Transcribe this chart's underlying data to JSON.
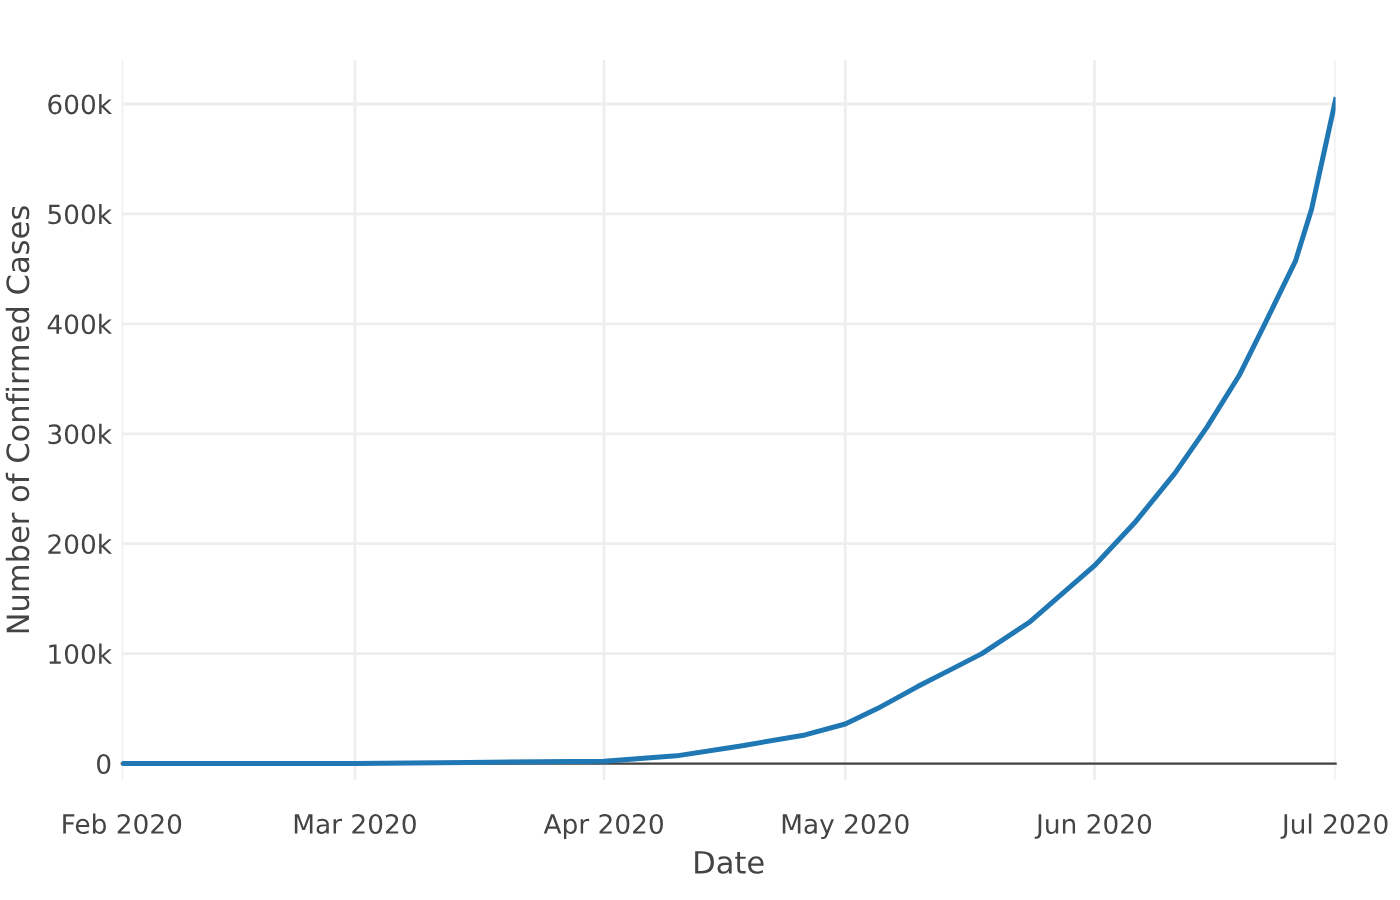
{
  "chart_data": {
    "type": "line",
    "xlabel": "Date",
    "ylabel": "Number of Confirmed Cases",
    "x": [
      "2020-02-01",
      "2020-03-01",
      "2020-03-15",
      "2020-04-01",
      "2020-04-10",
      "2020-04-18",
      "2020-04-26",
      "2020-05-01",
      "2020-05-05",
      "2020-05-10",
      "2020-05-14",
      "2020-05-18",
      "2020-05-24",
      "2020-06-01",
      "2020-06-06",
      "2020-06-11",
      "2020-06-15",
      "2020-06-19",
      "2020-06-22",
      "2020-06-26",
      "2020-06-28",
      "2020-07-01"
    ],
    "series": [
      {
        "color": "#1f77b4",
        "values": [
          0,
          0,
          1000,
          2000,
          7000,
          16000,
          26000,
          36000,
          50000,
          70000,
          85000,
          100000,
          129000,
          180000,
          219000,
          264000,
          306000,
          353000,
          397000,
          457000,
          504000,
          604000
        ]
      }
    ],
    "xlim": [
      "2020-02-01",
      "2020-07-01"
    ],
    "xticks": [
      {
        "value": "2020-02-01",
        "label": "Feb 2020"
      },
      {
        "value": "2020-03-01",
        "label": "Mar 2020"
      },
      {
        "value": "2020-04-01",
        "label": "Apr 2020"
      },
      {
        "value": "2020-05-01",
        "label": "May 2020"
      },
      {
        "value": "2020-06-01",
        "label": "Jun 2020"
      },
      {
        "value": "2020-07-01",
        "label": "Jul 2020"
      }
    ],
    "ylim": [
      -15000,
      640000
    ],
    "yticks": [
      0,
      {
        "value": 100000,
        "label": "100k"
      },
      {
        "value": 200000,
        "label": "200k"
      },
      {
        "value": 300000,
        "label": "300k"
      },
      {
        "value": 400000,
        "label": "400k"
      },
      {
        "value": 500000,
        "label": "500k"
      },
      {
        "value": 600000,
        "label": "600k"
      }
    ],
    "grid": true,
    "legend": false,
    "marker": "none",
    "line_style": "solid"
  }
}
